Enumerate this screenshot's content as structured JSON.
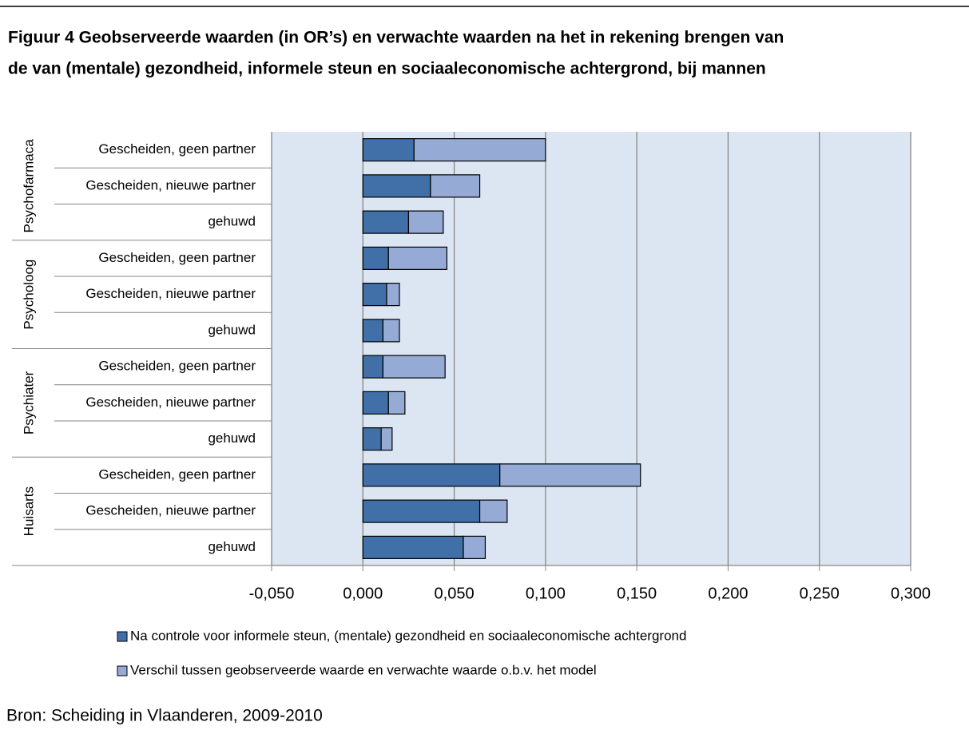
{
  "chart_data": {
    "type": "stacked-bar-horizontal",
    "title": [
      "Figuur 4 Geobserveerde waarden (in OR’s) en verwachte waarden na het in rekening brengen van",
      "de van (mentale) gezondheid, informele steun en sociaaleconomische achtergrond, bij mannen"
    ],
    "groups": [
      {
        "name": "Psychofarmaca",
        "categories": [
          "Gescheiden, geen partner",
          "Gescheiden, nieuwe partner",
          "gehuwd"
        ]
      },
      {
        "name": "Psycholoog",
        "categories": [
          "Gescheiden, geen partner",
          "Gescheiden, nieuwe partner",
          "gehuwd"
        ]
      },
      {
        "name": "Psychiater",
        "categories": [
          "Gescheiden, geen partner",
          "Gescheiden, nieuwe partner",
          "gehuwd"
        ]
      },
      {
        "name": "Huisarts",
        "categories": [
          "Gescheiden, geen partner",
          "Gescheiden, nieuwe partner",
          "gehuwd"
        ]
      }
    ],
    "series": [
      {
        "name": "Na controle voor informele steun, (mentale) gezondheid en sociaaleconomische achtergrond",
        "color": "#4170a8",
        "values": [
          0.028,
          0.037,
          0.025,
          0.014,
          0.013,
          0.011,
          0.011,
          0.014,
          0.01,
          0.075,
          0.064,
          0.055
        ]
      },
      {
        "name": "Verschil tussen geobserveerde waarde en verwachte waarde o.b.v. het model",
        "color": "#95aad4",
        "values": [
          0.072,
          0.027,
          0.019,
          0.032,
          0.007,
          0.009,
          0.034,
          0.009,
          0.006,
          0.077,
          0.015,
          0.012
        ]
      }
    ],
    "xlim": [
      -0.05,
      0.3
    ],
    "xticks": [
      {
        "value": -0.05,
        "label": "-0,050"
      },
      {
        "value": 0,
        "label": "0,000"
      },
      {
        "value": 0.05,
        "label": "0,050"
      },
      {
        "value": 0.1,
        "label": "0,100"
      },
      {
        "value": 0.15,
        "label": "0,150"
      },
      {
        "value": 0.2,
        "label": "0,200"
      },
      {
        "value": 0.25,
        "label": "0,250"
      },
      {
        "value": 0.3,
        "label": "0,300"
      }
    ],
    "grid": true,
    "legend": "bottom",
    "source": "Bron: Scheiding in Vlaanderen, 2009-2010"
  }
}
